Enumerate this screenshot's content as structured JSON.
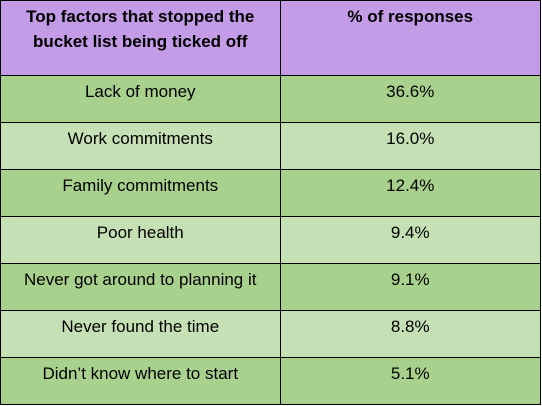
{
  "table": {
    "headers": {
      "factor": "Top factors that stopped the bucket list being ticked off",
      "percent": "% of responses"
    },
    "rows": [
      {
        "factor": "Lack of money",
        "percent": "36.6%"
      },
      {
        "factor": "Work commitments",
        "percent": "16.0%"
      },
      {
        "factor": "Family commitments",
        "percent": "12.4%"
      },
      {
        "factor": "Poor health",
        "percent": "9.4%"
      },
      {
        "factor": "Never got around to planning it",
        "percent": "9.1%"
      },
      {
        "factor": "Never found the time",
        "percent": "8.8%"
      },
      {
        "factor": "Didn’t know where to start",
        "percent": "5.1%"
      }
    ]
  },
  "colors": {
    "header_bg": "#c39be6",
    "row_dark_bg": "#a9d18e",
    "row_light_bg": "#c5e0b4",
    "border": "#000000"
  }
}
